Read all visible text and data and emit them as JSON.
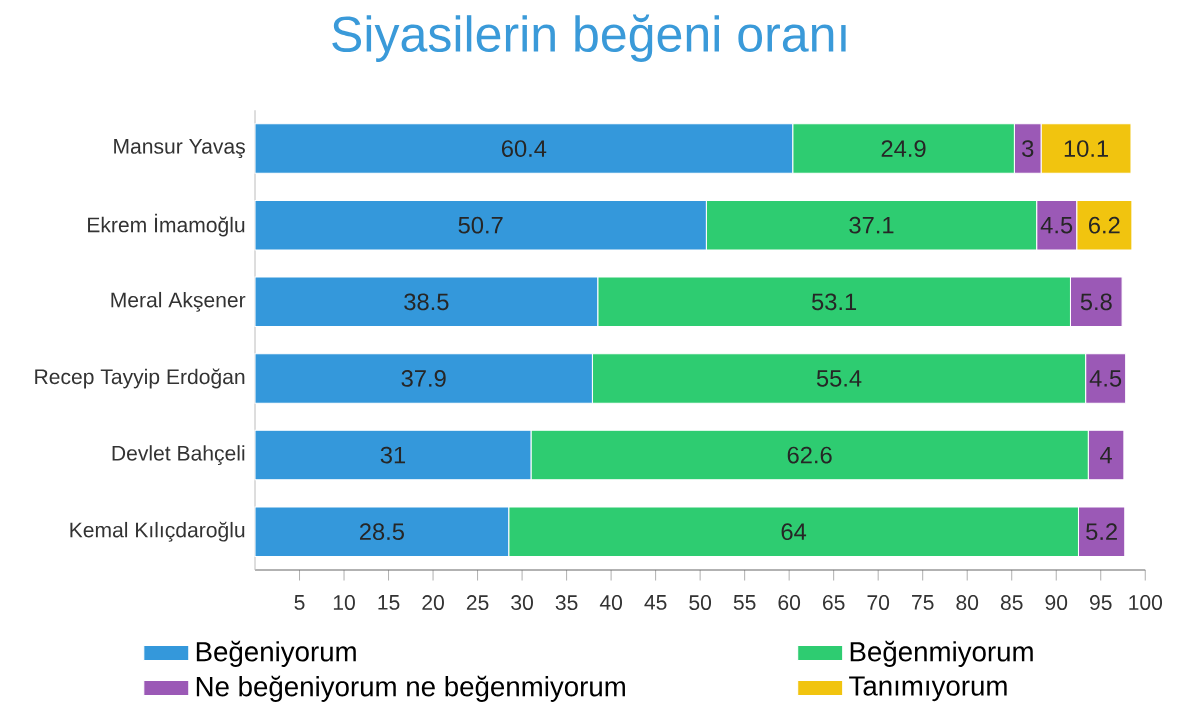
{
  "chart_data": {
    "type": "bar",
    "orientation": "horizontal",
    "stacked": true,
    "title": "Siyasilerin beğeni oranı",
    "categories": [
      "Mansur Yavaş",
      "Ekrem İmamoğlu",
      "Meral Akşener",
      "Recep Tayyip Erdoğan",
      "Devlet Bahçeli",
      "Kemal Kılıçdaroğlu"
    ],
    "series": [
      {
        "name": "Beğeniyorum",
        "color": "#3498db",
        "values": [
          60.4,
          50.7,
          38.5,
          37.9,
          31,
          28.5
        ]
      },
      {
        "name": "Beğenmiyorum",
        "color": "#2ecc71",
        "values": [
          24.9,
          37.1,
          53.1,
          55.4,
          62.6,
          64
        ]
      },
      {
        "name": "Ne beğeniyorum ne beğenmiyorum",
        "color": "#9b59b6",
        "values": [
          3,
          4.5,
          5.8,
          4.5,
          4,
          5.2
        ]
      },
      {
        "name": "Tanımıyorum",
        "color": "#f1c40f",
        "values": [
          10.1,
          6.2,
          null,
          null,
          null,
          null
        ]
      }
    ],
    "xlim": [
      0,
      100
    ],
    "xticks": [
      5,
      10,
      15,
      20,
      25,
      30,
      35,
      40,
      45,
      50,
      55,
      60,
      65,
      70,
      75,
      80,
      85,
      90,
      95,
      100
    ],
    "data_labels": true,
    "grid": false,
    "legend": "bottom"
  }
}
